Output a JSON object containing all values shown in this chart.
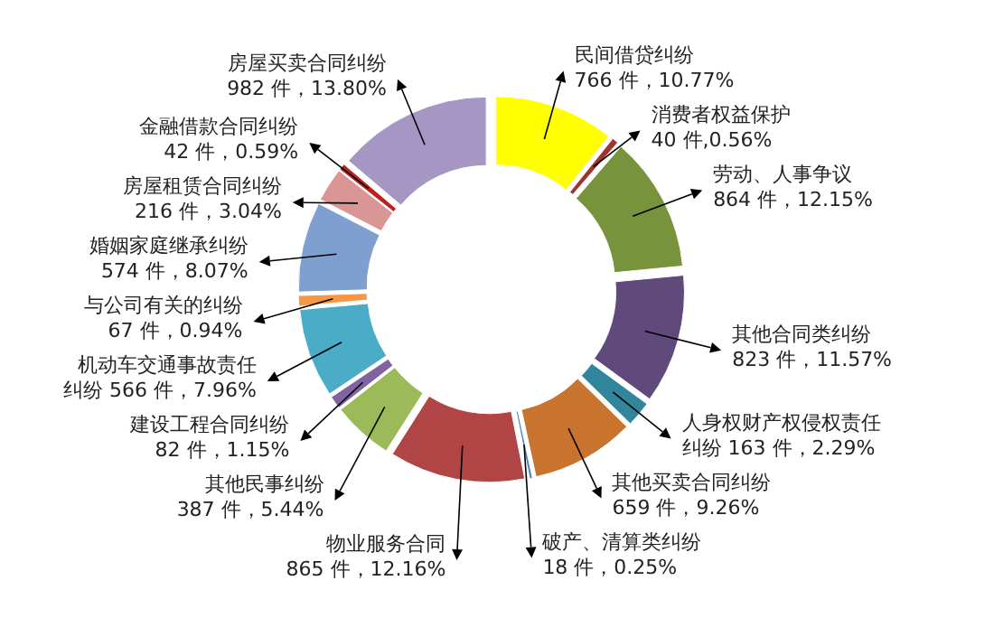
{
  "chart_data": {
    "type": "donut",
    "categories": [
      "民间借贷纠纷",
      "消费者权益保护",
      "劳动、人事争议",
      "其他合同类纠纷",
      "人身权财产权侵权责任纠纷",
      "其他买卖合同纠纷",
      "破产、清算类纠纷",
      "物业服务合同",
      "其他民事纠纷",
      "建设工程合同纠纷",
      "机动车交通事故责任纠纷",
      "与公司有关的纠纷",
      "婚姻家庭继承纠纷",
      "房屋租赁合同纠纷",
      "金融借款合同纠纷",
      "房屋买卖合同纠纷"
    ],
    "values": [
      766,
      40,
      864,
      823,
      163,
      659,
      18,
      865,
      387,
      82,
      566,
      67,
      574,
      216,
      42,
      982
    ],
    "value_labels": [
      "766 件，10.77%",
      "40 件,0.56%",
      "864 件，12.15%",
      "823 件，11.57%",
      "163 件，2.29%",
      "659 件，9.26%",
      "18 件，0.25%",
      "865 件，12.16%",
      "387 件，5.44%",
      "82 件，1.15%",
      "566 件，7.96%",
      "67 件，0.94%",
      "574 件，8.07%",
      "216 件，3.04%",
      "42 件，0.59%",
      "982 件，13.80%"
    ],
    "colors": [
      "#ffff00",
      "#a0342f",
      "#77933c",
      "#604a7b",
      "#31859c",
      "#c9742e",
      "#4f81bd",
      "#b14444",
      "#9bbb59",
      "#8064a2",
      "#4aacc6",
      "#f79646",
      "#7f9fd0",
      "#d99694",
      "#c0201d",
      "#a596c4"
    ]
  }
}
